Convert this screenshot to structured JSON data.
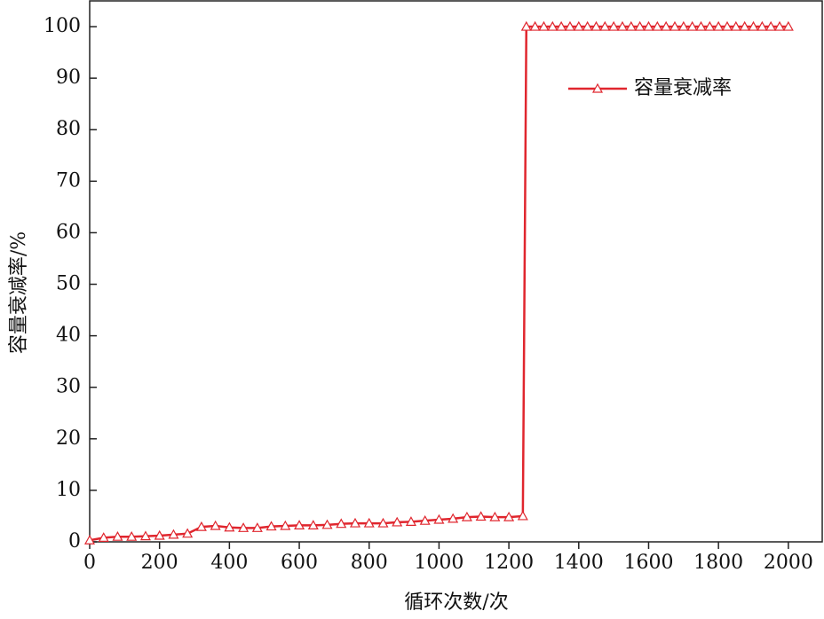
{
  "chart_data": {
    "type": "line",
    "xlabel": "循环次数/次",
    "ylabel": "容量衰减率/%",
    "x": [
      0,
      40,
      80,
      120,
      160,
      200,
      240,
      280,
      320,
      360,
      400,
      440,
      480,
      520,
      560,
      600,
      640,
      680,
      720,
      760,
      800,
      840,
      880,
      920,
      960,
      1000,
      1040,
      1080,
      1120,
      1160,
      1200,
      1240,
      1250,
      1275,
      1300,
      1325,
      1350,
      1375,
      1400,
      1425,
      1450,
      1475,
      1500,
      1525,
      1550,
      1575,
      1600,
      1625,
      1650,
      1675,
      1700,
      1725,
      1750,
      1775,
      1800,
      1825,
      1850,
      1875,
      1900,
      1925,
      1950,
      1975,
      2000
    ],
    "series": [
      {
        "name": "容量衰减率",
        "color": "#e0262e",
        "marker": "triangle",
        "values": [
          0.3,
          0.8,
          1.0,
          1.0,
          1.1,
          1.2,
          1.4,
          1.6,
          2.9,
          3.1,
          2.8,
          2.7,
          2.7,
          3.0,
          3.1,
          3.2,
          3.2,
          3.3,
          3.5,
          3.6,
          3.6,
          3.6,
          3.8,
          3.9,
          4.1,
          4.3,
          4.5,
          4.8,
          4.9,
          4.8,
          4.8,
          5.0,
          100,
          100,
          100,
          100,
          100,
          100,
          100,
          100,
          100,
          100,
          100,
          100,
          100,
          100,
          100,
          100,
          100,
          100,
          100,
          100,
          100,
          100,
          100,
          100,
          100,
          100,
          100,
          100,
          100,
          100,
          100
        ]
      }
    ],
    "xlim": [
      0,
      2097
    ],
    "ylim": [
      0,
      105
    ],
    "xticks": [
      0,
      200,
      400,
      600,
      800,
      1000,
      1200,
      1400,
      1600,
      1800,
      2000
    ],
    "yticks": [
      0,
      10,
      20,
      30,
      40,
      50,
      60,
      70,
      80,
      90,
      100
    ],
    "legend": "upper right"
  }
}
